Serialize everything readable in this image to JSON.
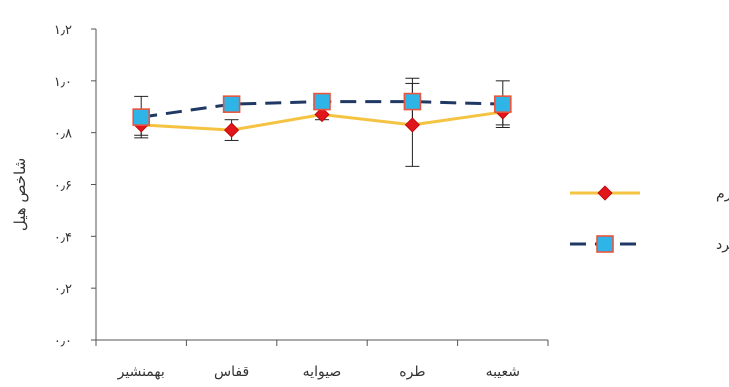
{
  "chart_data": {
    "type": "line",
    "title": "",
    "xlabel": "",
    "ylabel": "شاخص هیل",
    "categories": [
      "بهمنشیر",
      "قفاس",
      "صیوایه",
      "طره",
      "شعیبه"
    ],
    "ylim": [
      0,
      1.2
    ],
    "y_ticks": [
      0,
      0.2,
      0.4,
      0.6,
      0.8,
      1.0,
      1.2
    ],
    "y_tick_labels": [
      "۰٫۰",
      "۰٫۲",
      "۰٫۴",
      "۰٫۶",
      "۰٫۸",
      "۱٫۰",
      "۱٫۲"
    ],
    "grid": false,
    "legend_position": "right",
    "series": [
      {
        "name": "فصل گرم",
        "values": [
          0.83,
          0.81,
          0.87,
          0.83,
          0.88
        ],
        "error": [
          0.04,
          0.04,
          0.02,
          0.16,
          0.05
        ],
        "color": "#f5c342",
        "marker": "diamond",
        "marker_color": "#e0161b",
        "line_style": "solid"
      },
      {
        "name": "فصل سرد",
        "values": [
          0.86,
          0.91,
          0.92,
          0.92,
          0.91
        ],
        "error": [
          0.08,
          0.02,
          0.02,
          0.09,
          0.09
        ],
        "color": "#1f3864",
        "marker": "square",
        "marker_color": "#2fb4e8",
        "marker_edge": "#e8553f",
        "line_style": "dashed"
      }
    ]
  }
}
